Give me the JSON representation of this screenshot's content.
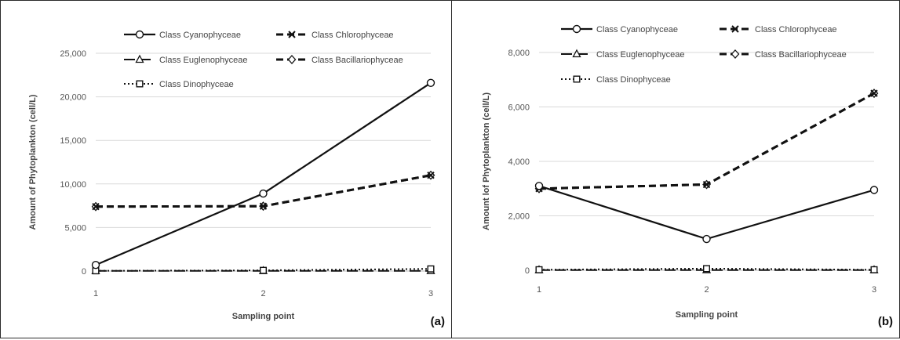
{
  "chart_data": [
    {
      "type": "line",
      "panel_label": "(a)",
      "xlabel": "Sampling point",
      "ylabel": "Amount of Phytoplankton (cell/L)",
      "x": [
        1,
        2,
        3
      ],
      "xticks": [
        "1",
        "2",
        "3"
      ],
      "ylim": [
        0,
        25000
      ],
      "yticks": [
        "0",
        "5,000",
        "10,000",
        "15,000",
        "20,000",
        "25,000"
      ],
      "ytick_values": [
        0,
        5000,
        10000,
        15000,
        20000,
        25000
      ],
      "grid": true,
      "legend_position": "top",
      "series": [
        {
          "name": "Class Cyanophyceae",
          "values": [
            700,
            8900,
            21600
          ],
          "line": "solid",
          "marker": "circle"
        },
        {
          "name": "Class Chlorophyceae",
          "values": [
            7400,
            7450,
            11000
          ],
          "line": "dashed",
          "marker": "x"
        },
        {
          "name": "Class Euglenophyceae",
          "values": [
            20,
            20,
            30
          ],
          "line": "longdash",
          "marker": "triangle"
        },
        {
          "name": "Class Bacillariophyceae",
          "values": [
            7400,
            7450,
            11000
          ],
          "line": "dashed",
          "marker": "diamond"
        },
        {
          "name": "Class Dinophyceae",
          "values": [
            30,
            80,
            250
          ],
          "line": "dotted",
          "marker": "square"
        }
      ]
    },
    {
      "type": "line",
      "panel_label": "(b)",
      "xlabel": "Sampling point",
      "ylabel": "Amount lof Phytoplankton (cell/L)",
      "x": [
        1,
        2,
        3
      ],
      "xticks": [
        "1",
        "2",
        "3"
      ],
      "ylim": [
        0,
        8000
      ],
      "yticks": [
        "0",
        "2,000",
        "4,000",
        "6,000",
        "8,000"
      ],
      "ytick_values": [
        0,
        2000,
        4000,
        6000,
        8000
      ],
      "grid": true,
      "legend_position": "top",
      "series": [
        {
          "name": "Class Cyanophyceae",
          "values": [
            3100,
            1150,
            2950
          ],
          "line": "solid",
          "marker": "circle"
        },
        {
          "name": "Class Chlorophyceae",
          "values": [
            3000,
            3150,
            6500
          ],
          "line": "dashed",
          "marker": "x"
        },
        {
          "name": "Class Euglenophyceae",
          "values": [
            10,
            10,
            10
          ],
          "line": "longdash",
          "marker": "triangle"
        },
        {
          "name": "Class Bacillariophyceae",
          "values": [
            3000,
            3150,
            6500
          ],
          "line": "dashed",
          "marker": "diamond"
        },
        {
          "name": "Class Dinophyceae",
          "values": [
            20,
            60,
            20
          ],
          "line": "dotted",
          "marker": "square"
        }
      ]
    }
  ]
}
